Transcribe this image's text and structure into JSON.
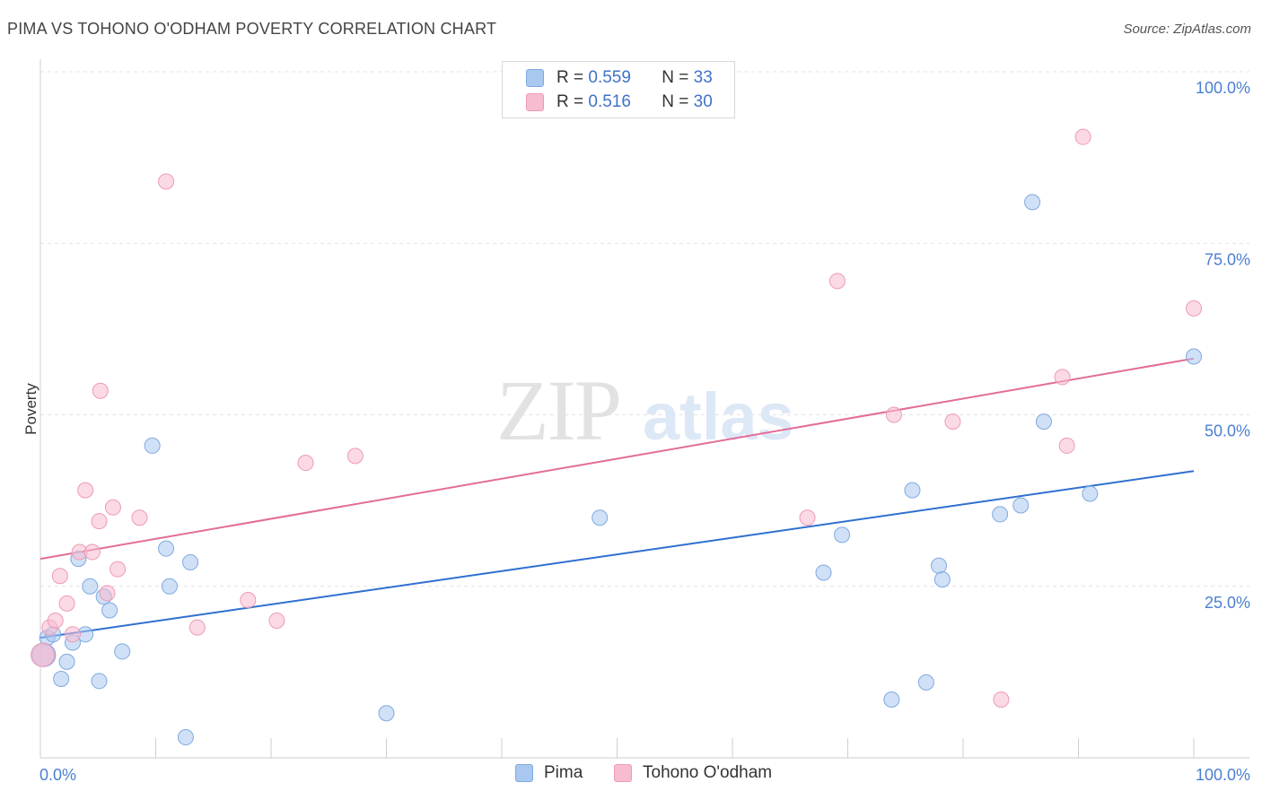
{
  "header": {
    "title": "PIMA VS TOHONO O'ODHAM POVERTY CORRELATION CHART",
    "source": "Source: ZipAtlas.com"
  },
  "watermark": {
    "zip": "ZIP",
    "atlas": "atlas"
  },
  "legend": {
    "rows": [
      {
        "r_label": "R =",
        "r_value": "0.559",
        "n_label": "N =",
        "n_value": "33",
        "color": "#a9c8f0",
        "border": "#7fa9e0"
      },
      {
        "r_label": "R =",
        "r_value": "0.516",
        "n_label": "N =",
        "n_value": "30",
        "color": "#f7bcd0",
        "border": "#ee9ab7"
      }
    ]
  },
  "bottom_legend": [
    {
      "label": "Pima",
      "color": "#a9c8f0",
      "border": "#7fa9e0"
    },
    {
      "label": "Tohono O'odham",
      "color": "#f7bcd0",
      "border": "#ee9ab7"
    }
  ],
  "chart_data": {
    "type": "scatter",
    "title": "PIMA VS TOHONO O'ODHAM POVERTY CORRELATION CHART",
    "xlabel": "",
    "ylabel": "Poverty",
    "xlim": [
      0,
      100
    ],
    "ylim": [
      0,
      100
    ],
    "x_tick_labels": [
      "0.0%",
      "100.0%"
    ],
    "y_tick_labels": [
      "25.0%",
      "50.0%",
      "75.0%",
      "100.0%"
    ],
    "y_tick_values": [
      25,
      50,
      75,
      100
    ],
    "series": [
      {
        "name": "Pima",
        "color": "#a9c8f0",
        "edge": "#7fa9e0",
        "line_color": "#2f6fd0",
        "trend": [
          [
            0,
            17.5
          ],
          [
            100,
            41.8
          ]
        ],
        "points": [
          [
            0.3,
            15.0
          ],
          [
            0.6,
            17.5
          ],
          [
            1.1,
            18.0
          ],
          [
            1.8,
            11.5
          ],
          [
            2.3,
            14.0
          ],
          [
            2.8,
            16.8
          ],
          [
            3.3,
            29.0
          ],
          [
            3.9,
            18.0
          ],
          [
            4.3,
            25.0
          ],
          [
            5.1,
            11.2
          ],
          [
            5.5,
            23.5
          ],
          [
            6.0,
            21.5
          ],
          [
            7.1,
            15.5
          ],
          [
            9.7,
            45.5
          ],
          [
            10.9,
            30.5
          ],
          [
            11.2,
            25.0
          ],
          [
            12.6,
            3.0
          ],
          [
            13.0,
            28.5
          ],
          [
            30.0,
            6.5
          ],
          [
            48.5,
            35.0
          ],
          [
            86.0,
            81.0
          ],
          [
            100.0,
            58.5
          ],
          [
            67.9,
            27.0
          ],
          [
            69.5,
            32.5
          ],
          [
            73.8,
            8.5
          ],
          [
            75.6,
            39.0
          ],
          [
            76.8,
            11.0
          ],
          [
            77.9,
            28.0
          ],
          [
            78.2,
            26.0
          ],
          [
            83.2,
            35.5
          ],
          [
            85.0,
            36.8
          ],
          [
            87.0,
            49.0
          ],
          [
            91.0,
            38.5
          ]
        ]
      },
      {
        "name": "Tohono O'odham",
        "color": "#f7bcd0",
        "edge": "#ee9ab7",
        "line_color": "#e26d97",
        "trend": [
          [
            0,
            29.0
          ],
          [
            100,
            58.2
          ]
        ],
        "points": [
          [
            0.2,
            15.0
          ],
          [
            0.8,
            19.0
          ],
          [
            1.3,
            20.0
          ],
          [
            1.7,
            26.5
          ],
          [
            2.3,
            22.5
          ],
          [
            2.8,
            18.0
          ],
          [
            3.4,
            30.0
          ],
          [
            3.9,
            39.0
          ],
          [
            4.5,
            30.0
          ],
          [
            5.1,
            34.5
          ],
          [
            5.2,
            53.5
          ],
          [
            5.8,
            24.0
          ],
          [
            6.3,
            36.5
          ],
          [
            6.7,
            27.5
          ],
          [
            8.6,
            35.0
          ],
          [
            10.9,
            84.0
          ],
          [
            13.6,
            19.0
          ],
          [
            18.0,
            23.0
          ],
          [
            20.5,
            20.0
          ],
          [
            23.0,
            43.0
          ],
          [
            27.3,
            44.0
          ],
          [
            66.5,
            35.0
          ],
          [
            69.1,
            69.5
          ],
          [
            74.0,
            50.0
          ],
          [
            79.1,
            49.0
          ],
          [
            83.3,
            8.5
          ],
          [
            88.6,
            55.5
          ],
          [
            89.0,
            45.5
          ],
          [
            90.4,
            90.5
          ],
          [
            100.0,
            65.5
          ]
        ]
      }
    ]
  }
}
